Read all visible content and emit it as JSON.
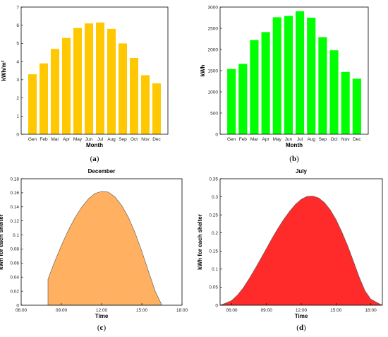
{
  "chart_data": [
    {
      "id": "a",
      "type": "bar",
      "caption_letter": "a",
      "color": "#FFC800",
      "categories": [
        "Gen",
        "Feb",
        "Mar",
        "Apr",
        "May",
        "Jun",
        "Jul",
        "Aug",
        "Sep",
        "Oct",
        "Nov",
        "Dec"
      ],
      "values": [
        3.3,
        3.9,
        4.7,
        5.3,
        5.85,
        6.1,
        6.15,
        5.8,
        5.0,
        4.2,
        3.25,
        2.8
      ],
      "title": "",
      "xlabel": "Month",
      "ylabel": "kWh/m²",
      "ylim": [
        0,
        7
      ],
      "yticks": [
        0,
        1,
        2,
        3,
        4,
        5,
        6,
        7
      ],
      "grid": false
    },
    {
      "id": "b",
      "type": "bar",
      "caption_letter": "b",
      "color": "#00FF00",
      "categories": [
        "Gen",
        "Feb",
        "Mar",
        "Apr",
        "May",
        "Jun",
        "Jul",
        "Aug",
        "Sep",
        "Oct",
        "Nov",
        "Dec"
      ],
      "values": [
        1540,
        1660,
        2220,
        2410,
        2760,
        2790,
        2900,
        2750,
        2290,
        1980,
        1470,
        1310
      ],
      "title": "",
      "xlabel": "Month",
      "ylabel": "kWh",
      "ylim": [
        0,
        3000
      ],
      "yticks": [
        0,
        500,
        1000,
        1500,
        2000,
        2500,
        3000
      ],
      "grid": false
    },
    {
      "id": "c",
      "type": "area",
      "caption_letter": "c",
      "color": "#FFB060",
      "title": "December",
      "xlabel": "Time",
      "ylabel": "kWh for each shelter",
      "xlim": [
        "06:00",
        "18:00"
      ],
      "xticks": [
        "06:00",
        "09:00",
        "12:00",
        "15:00",
        "18:00"
      ],
      "ylim": [
        0,
        0.18
      ],
      "yticks": [
        0,
        0.02,
        0.04,
        0.06,
        0.08,
        0.1,
        0.12,
        0.14,
        0.16,
        0.18
      ],
      "x": [
        "08:00",
        "08:30",
        "09:00",
        "09:30",
        "10:00",
        "10:30",
        "11:00",
        "11:30",
        "12:00",
        "12:30",
        "13:00",
        "13:30",
        "14:00",
        "14:30",
        "15:00",
        "15:30",
        "16:00",
        "16:30"
      ],
      "y": [
        0.037,
        0.062,
        0.085,
        0.106,
        0.124,
        0.139,
        0.151,
        0.159,
        0.162,
        0.161,
        0.154,
        0.142,
        0.125,
        0.103,
        0.077,
        0.048,
        0.02,
        0.0
      ],
      "grid": false
    },
    {
      "id": "d",
      "type": "area",
      "caption_letter": "d",
      "color": "#FF2A2A",
      "title": "July",
      "xlabel": "Time",
      "ylabel": "kWh for each shelter",
      "xlim": [
        "05:00",
        "19:00"
      ],
      "xticks": [
        "06:00",
        "09:00",
        "12:00",
        "15:00",
        "18:00"
      ],
      "ylim": [
        0,
        0.35
      ],
      "yticks": [
        0,
        0.05,
        0.1,
        0.15,
        0.2,
        0.25,
        0.3,
        0.35
      ],
      "x": [
        "05:00",
        "05:30",
        "06:00",
        "06:30",
        "07:00",
        "07:30",
        "08:00",
        "08:30",
        "09:00",
        "09:30",
        "10:00",
        "10:30",
        "11:00",
        "11:30",
        "12:00",
        "12:30",
        "13:00",
        "13:30",
        "14:00",
        "14:30",
        "15:00",
        "15:30",
        "16:00",
        "16:30",
        "17:00",
        "17:30",
        "18:00",
        "18:30",
        "19:00"
      ],
      "y": [
        0.0,
        0.006,
        0.013,
        0.028,
        0.048,
        0.073,
        0.1,
        0.128,
        0.157,
        0.186,
        0.213,
        0.238,
        0.26,
        0.279,
        0.293,
        0.301,
        0.302,
        0.297,
        0.284,
        0.264,
        0.237,
        0.203,
        0.165,
        0.122,
        0.078,
        0.04,
        0.017,
        0.008,
        0.0
      ],
      "grid": false
    }
  ]
}
